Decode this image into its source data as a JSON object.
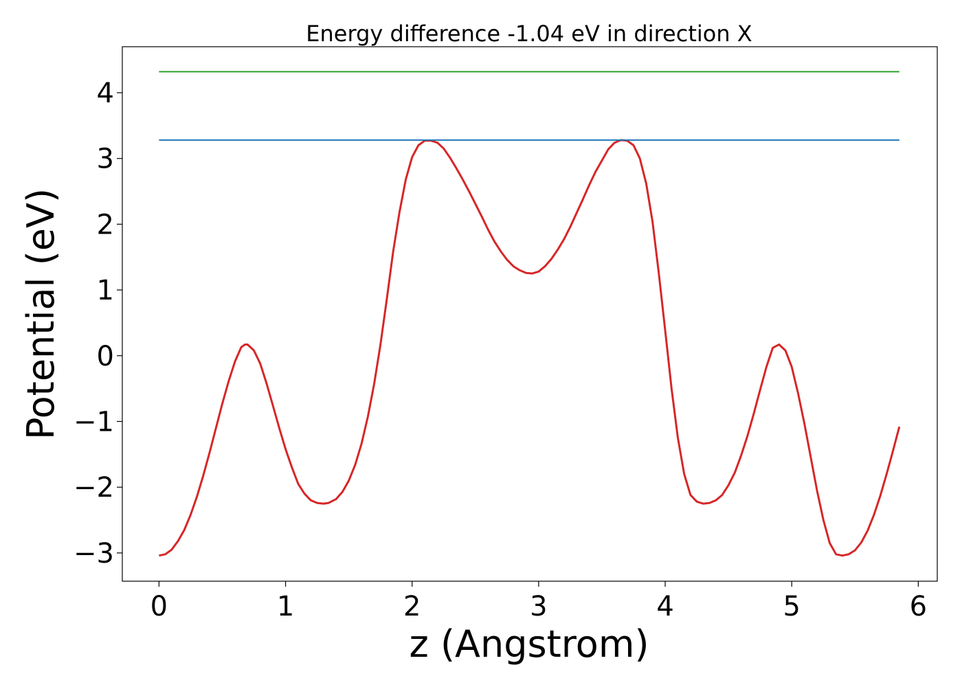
{
  "chart_data": {
    "type": "line",
    "title": "Energy difference -1.04 eV in direction X",
    "xlabel": "z (Angstrom)",
    "ylabel": "Potential (eV)",
    "xlim": [
      -0.29,
      6.15
    ],
    "ylim": [
      -3.43,
      4.7
    ],
    "xticks": [
      0,
      1,
      2,
      3,
      4,
      5,
      6
    ],
    "xtick_labels": [
      "0",
      "1",
      "2",
      "3",
      "4",
      "5",
      "6"
    ],
    "yticks": [
      -3,
      -2,
      -1,
      0,
      1,
      2,
      3,
      4
    ],
    "ytick_labels": [
      "−3",
      "−2",
      "−1",
      "0",
      "1",
      "2",
      "3",
      "4"
    ],
    "grid": false,
    "legend": "none",
    "series": [
      {
        "color": "#d62728",
        "x": [
          0.0,
          0.05,
          0.1,
          0.15,
          0.2,
          0.25,
          0.3,
          0.35,
          0.4,
          0.45,
          0.5,
          0.55,
          0.6,
          0.65,
          0.68,
          0.7,
          0.75,
          0.8,
          0.85,
          0.9,
          0.95,
          1.0,
          1.05,
          1.1,
          1.15,
          1.2,
          1.25,
          1.3,
          1.34,
          1.4,
          1.45,
          1.5,
          1.55,
          1.6,
          1.65,
          1.7,
          1.75,
          1.8,
          1.85,
          1.9,
          1.95,
          2.0,
          2.05,
          2.1,
          2.15,
          2.2,
          2.25,
          2.3,
          2.35,
          2.4,
          2.45,
          2.5,
          2.55,
          2.6,
          2.65,
          2.7,
          2.75,
          2.8,
          2.85,
          2.9,
          2.95,
          3.0,
          3.05,
          3.1,
          3.15,
          3.2,
          3.25,
          3.3,
          3.35,
          3.4,
          3.45,
          3.5,
          3.55,
          3.6,
          3.65,
          3.7,
          3.75,
          3.8,
          3.85,
          3.9,
          3.95,
          4.0,
          4.05,
          4.1,
          4.15,
          4.2,
          4.25,
          4.3,
          4.35,
          4.4,
          4.45,
          4.5,
          4.55,
          4.6,
          4.65,
          4.7,
          4.75,
          4.8,
          4.85,
          4.9,
          4.95,
          5.0,
          5.05,
          5.1,
          5.15,
          5.2,
          5.25,
          5.3,
          5.35,
          5.4,
          5.45,
          5.5,
          5.55,
          5.6,
          5.65,
          5.7,
          5.75,
          5.8,
          5.85
        ],
        "y": [
          -3.04,
          -3.02,
          -2.95,
          -2.82,
          -2.65,
          -2.42,
          -2.14,
          -1.82,
          -1.47,
          -1.1,
          -0.73,
          -0.39,
          -0.09,
          0.13,
          0.17,
          0.17,
          0.08,
          -0.12,
          -0.42,
          -0.76,
          -1.1,
          -1.42,
          -1.7,
          -1.95,
          -2.1,
          -2.2,
          -2.24,
          -2.25,
          -2.24,
          -2.18,
          -2.07,
          -1.9,
          -1.66,
          -1.34,
          -0.93,
          -0.43,
          0.17,
          0.86,
          1.58,
          2.18,
          2.68,
          3.02,
          3.2,
          3.27,
          3.27,
          3.24,
          3.15,
          3.01,
          2.85,
          2.68,
          2.5,
          2.31,
          2.12,
          1.92,
          1.74,
          1.59,
          1.46,
          1.36,
          1.3,
          1.26,
          1.25,
          1.28,
          1.36,
          1.47,
          1.61,
          1.77,
          1.96,
          2.17,
          2.38,
          2.6,
          2.8,
          2.97,
          3.14,
          3.24,
          3.28,
          3.27,
          3.2,
          3.0,
          2.62,
          2.04,
          1.25,
          0.38,
          -0.5,
          -1.25,
          -1.8,
          -2.12,
          -2.22,
          -2.25,
          -2.24,
          -2.2,
          -2.12,
          -1.97,
          -1.78,
          -1.52,
          -1.22,
          -0.88,
          -0.52,
          -0.17,
          0.12,
          0.17,
          0.08,
          -0.17,
          -0.57,
          -1.03,
          -1.54,
          -2.05,
          -2.5,
          -2.85,
          -3.02,
          -3.04,
          -3.02,
          -2.96,
          -2.84,
          -2.66,
          -2.42,
          -2.13,
          -1.8,
          -1.45,
          -1.08
        ],
        "note_unused": ""
      },
      {
        "color": "#1f77b4",
        "x": [
          0.0,
          5.85
        ],
        "y": [
          3.28,
          3.28
        ]
      },
      {
        "color": "#2ca02c",
        "x": [
          0.0,
          5.85
        ],
        "y": [
          4.32,
          4.32
        ]
      }
    ]
  }
}
